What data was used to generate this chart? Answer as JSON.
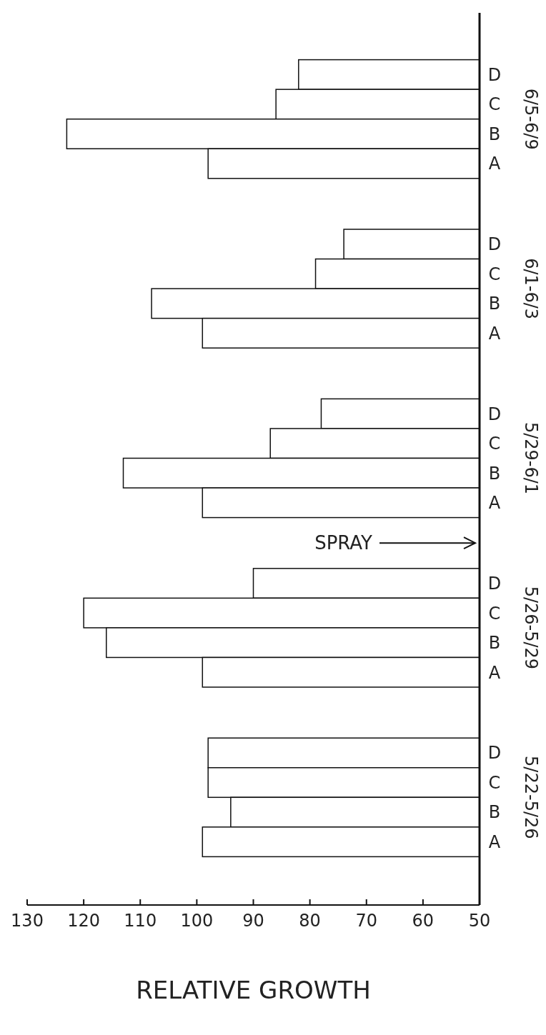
{
  "chart_data": {
    "type": "bar",
    "orientation": "horizontal",
    "xlabel": "RELATIVE GROWTH",
    "categories": [
      "6/5-6/9",
      "6/1-6/3",
      "5/29-6/1",
      "5/26-5/29",
      "5/22-5/26"
    ],
    "series": [
      {
        "name": "D",
        "color": "#ffffff",
        "values": [
          82,
          74,
          78,
          90,
          98
        ]
      },
      {
        "name": "C",
        "color": "#ffffff",
        "values": [
          86,
          79,
          87,
          120,
          98
        ]
      },
      {
        "name": "B",
        "color": "#ffffff",
        "values": [
          123,
          108,
          113,
          116,
          94
        ]
      },
      {
        "name": "A",
        "color": "#ffffff",
        "values": [
          98,
          99,
          99,
          99,
          99
        ]
      }
    ],
    "xlim": [
      130,
      50
    ],
    "xticks": [
      130,
      120,
      110,
      100,
      90,
      80,
      70,
      60,
      50
    ],
    "annotations": [
      "SPRAY"
    ],
    "grid": false
  }
}
